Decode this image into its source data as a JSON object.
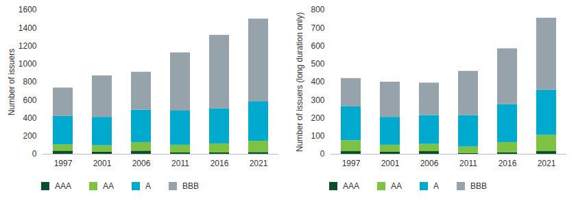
{
  "chart_data": [
    {
      "type": "bar",
      "stacked": true,
      "legend": "bottom",
      "ylabel": "Number of issuers",
      "categories": [
        "1997",
        "2001",
        "2006",
        "2011",
        "2016",
        "2021"
      ],
      "ylim": [
        0,
        1600
      ],
      "yticks": [
        0,
        200,
        400,
        600,
        800,
        1000,
        1200,
        1400,
        1600
      ],
      "series": [
        {
          "name": "AAA",
          "color": "#0b4d2c",
          "values": [
            35,
            25,
            35,
            15,
            15,
            20
          ]
        },
        {
          "name": "AA",
          "color": "#7dc242",
          "values": [
            70,
            70,
            95,
            85,
            100,
            125
          ]
        },
        {
          "name": "A",
          "color": "#00a9ce",
          "values": [
            315,
            315,
            360,
            380,
            390,
            440
          ]
        },
        {
          "name": "BBB",
          "color": "#97a3aa",
          "values": [
            315,
            460,
            420,
            645,
            815,
            915
          ]
        }
      ]
    },
    {
      "type": "bar",
      "stacked": true,
      "legend": "bottom",
      "ylabel": "Number of issuers (long duration only)",
      "categories": [
        "1997",
        "2001",
        "2006",
        "2011",
        "2016",
        "2021"
      ],
      "ylim": [
        0,
        800
      ],
      "yticks": [
        0,
        100,
        200,
        300,
        400,
        500,
        600,
        700,
        800
      ],
      "series": [
        {
          "name": "AAA",
          "color": "#0b4d2c",
          "values": [
            15,
            12,
            15,
            5,
            8,
            15
          ]
        },
        {
          "name": "AA",
          "color": "#7dc242",
          "values": [
            60,
            38,
            40,
            35,
            57,
            90
          ]
        },
        {
          "name": "A",
          "color": "#00a9ce",
          "values": [
            190,
            155,
            160,
            175,
            210,
            250
          ]
        },
        {
          "name": "BBB",
          "color": "#97a3aa",
          "values": [
            155,
            195,
            180,
            245,
            310,
            400
          ]
        }
      ]
    }
  ]
}
